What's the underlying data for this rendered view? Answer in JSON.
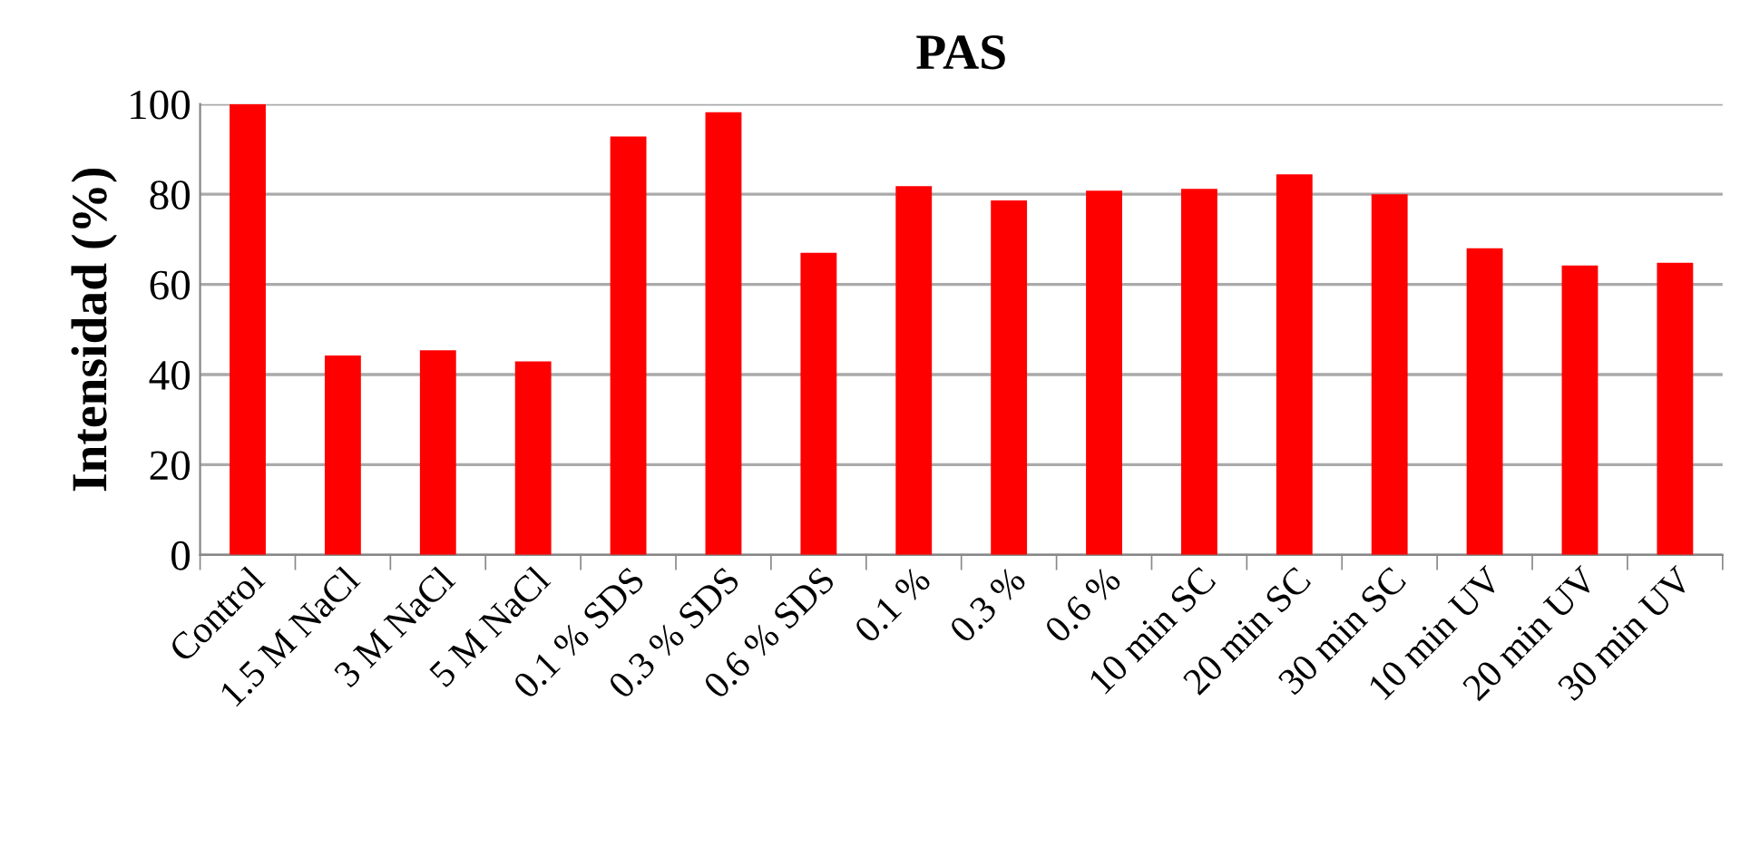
{
  "chart_data": {
    "type": "bar",
    "title": "PAS",
    "ylabel": "Intensidad (%)",
    "categories": [
      "Control",
      "1.5 M NaCl",
      "3 M NaCl",
      "5 M NaCl",
      "0.1 % SDS",
      "0.3 % SDS",
      "0.6 % SDS",
      "0.1 %",
      "0.3 %",
      "0.6 %",
      "10 min SC",
      "20 min SC",
      "30 min SC",
      "10 min UV",
      "20 min UV",
      "30 min UV"
    ],
    "values": [
      100,
      44.2,
      45.4,
      42.9,
      92.8,
      98.2,
      67.0,
      81.8,
      78.6,
      80.8,
      81.2,
      84.4,
      80.0,
      68.0,
      64.2,
      64.8
    ],
    "color": "#ff0000",
    "ylim": [
      0,
      100
    ],
    "yticks": [
      0,
      20,
      40,
      60,
      80,
      100
    ],
    "grid": "y"
  }
}
